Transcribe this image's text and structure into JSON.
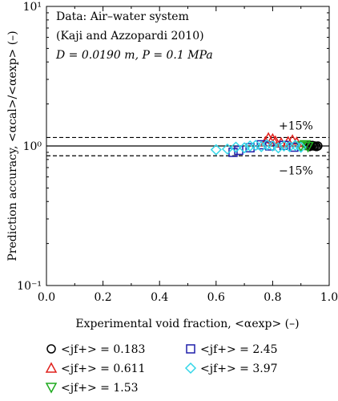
{
  "chart_data": {
    "type": "scatter",
    "annotation_lines": [
      "Data: Air–water system",
      "(Kaji and Azzopardi 2010)",
      "D = 0.0190 m, P = 0.1 MPa"
    ],
    "xlabel": "Experimental void fraction, <αexp> (–)",
    "ylabel": "Prediction accuracy, <αcal>/<αexp> (–)",
    "x_scale": "linear",
    "y_scale": "log",
    "xlim": [
      0.0,
      1.0
    ],
    "ylim": [
      0.1,
      10
    ],
    "x_ticks": [
      0.0,
      0.2,
      0.4,
      0.6,
      0.8,
      1.0
    ],
    "x_tick_labels": [
      "0.0",
      "0.2",
      "0.4",
      "0.6",
      "0.8",
      "1.0"
    ],
    "y_ticks": [
      0.1,
      1,
      10
    ],
    "y_tick_labels": [
      "10⁻¹",
      "10⁰",
      "10¹"
    ],
    "reference_lines": [
      {
        "y": 1.15,
        "style": "dashed",
        "label": "+15%"
      },
      {
        "y": 1.0,
        "style": "solid",
        "label": ""
      },
      {
        "y": 0.85,
        "style": "dashed",
        "label": "−15%"
      }
    ],
    "legend_placement": "bottom",
    "series": [
      {
        "name": "<jf+> = 0.183",
        "marker": "circle",
        "color": "#000000",
        "x": [
          0.925,
          0.93,
          0.935,
          0.94,
          0.945,
          0.95,
          0.955,
          0.96
        ],
        "y": [
          1.0,
          0.99,
          1.0,
          1.01,
          1.0,
          1.0,
          0.99,
          1.0
        ]
      },
      {
        "name": "<jf+> = 0.611",
        "marker": "triangle-up",
        "color": "#e0211c",
        "x": [
          0.775,
          0.785,
          0.8,
          0.81,
          0.83,
          0.855,
          0.87,
          0.885
        ],
        "y": [
          1.07,
          1.14,
          1.12,
          1.08,
          1.05,
          1.07,
          1.1,
          1.06
        ]
      },
      {
        "name": "<jf+> = 1.53",
        "marker": "triangle-down",
        "color": "#1faa1f",
        "x": [
          0.9,
          0.915,
          0.925
        ],
        "y": [
          1.0,
          1.02,
          0.99
        ]
      },
      {
        "name": "<jf+> = 2.45",
        "marker": "square",
        "color": "#1f1faa",
        "x": [
          0.66,
          0.68,
          0.72,
          0.76,
          0.79,
          0.84,
          0.875
        ],
        "y": [
          0.9,
          0.93,
          0.97,
          1.02,
          1.0,
          1.01,
          0.98
        ]
      },
      {
        "name": "<jf+> = 3.97",
        "marker": "diamond",
        "color": "#33d6e8",
        "x": [
          0.6,
          0.64,
          0.67,
          0.7,
          0.72,
          0.74,
          0.76,
          0.78,
          0.8,
          0.82,
          0.84,
          0.86,
          0.88,
          0.9
        ],
        "y": [
          0.94,
          0.95,
          0.98,
          0.97,
          1.0,
          1.01,
          0.99,
          1.02,
          1.0,
          0.97,
          1.0,
          0.99,
          1.01,
          0.98
        ]
      }
    ]
  }
}
